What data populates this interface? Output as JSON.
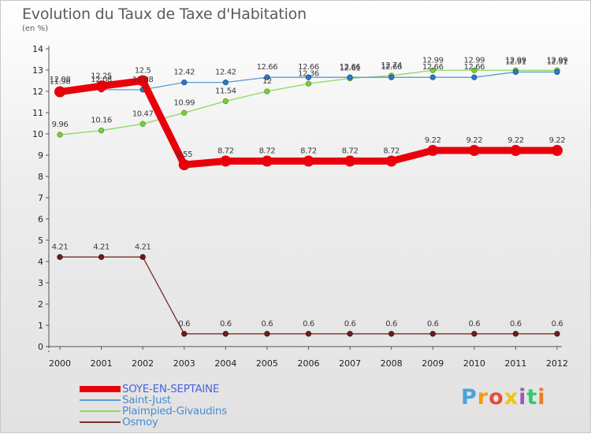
{
  "header": {
    "title": "Evolution du Taux de Taxe d'Habitation",
    "subtitle": "(en %)"
  },
  "logo": {
    "letters": [
      "P",
      "r",
      "o",
      "x",
      "i",
      "t",
      "i"
    ],
    "colors": [
      "#4aa3df",
      "#f39c12",
      "#e74c3c",
      "#f1c40f",
      "#9b59b6",
      "#2ecc71",
      "#e67e22"
    ]
  },
  "chart_data": {
    "type": "line",
    "title": "Evolution du Taux de Taxe d'Habitation",
    "subtitle": "(en %)",
    "x": [
      "2000",
      "2001",
      "2002",
      "2003",
      "2004",
      "2005",
      "2006",
      "2007",
      "2008",
      "2009",
      "2010",
      "2011",
      "2012"
    ],
    "ylim": [
      0,
      14
    ],
    "yticks": [
      "0",
      "1",
      "2",
      "3",
      "4",
      "5",
      "6",
      "7",
      "8",
      "9",
      "10",
      "11",
      "12",
      "13",
      "14"
    ],
    "grid": false,
    "legend_position": "bottom-left",
    "series": [
      {
        "name": "SOYE-EN-SEPTAINE",
        "color": "#e8000b",
        "values": [
          11.98,
          12.25,
          12.5,
          8.55,
          8.72,
          8.72,
          8.72,
          8.72,
          8.72,
          9.22,
          9.22,
          9.22,
          9.22
        ],
        "labels": [
          "11.98",
          "12.25",
          "12.5",
          "8.55",
          "8.72",
          "8.72",
          "8.72",
          "8.72",
          "8.72",
          "9.22",
          "9.22",
          "9.22",
          "9.22"
        ]
      },
      {
        "name": "Saint-Just",
        "color": "#5b9bd5",
        "values": [
          12.08,
          12.08,
          12.08,
          12.42,
          12.42,
          12.66,
          12.66,
          12.66,
          12.66,
          12.66,
          12.66,
          12.91,
          12.91
        ],
        "labels": [
          "12.08",
          "12.08",
          "12.08",
          "12.42",
          "12.42",
          "12.66",
          "12.66",
          "12.66",
          "12.66",
          "12.66",
          "12.66",
          "12.91",
          "12.91"
        ]
      },
      {
        "name": "Plaimpied-Givaudins",
        "color": "#8dd95f",
        "values": [
          9.96,
          10.16,
          10.47,
          10.99,
          11.54,
          12.0,
          12.36,
          12.61,
          12.74,
          12.99,
          12.99,
          12.99,
          12.99
        ],
        "labels": [
          "9.96",
          "10.16",
          "10.47",
          "10.99",
          "11.54",
          "12",
          "12.36",
          "12.61",
          "12.74",
          "12.99",
          "12.99",
          "12.99",
          "12.99"
        ]
      },
      {
        "name": "Osmoy",
        "color": "#7a2e2e",
        "values": [
          4.21,
          4.21,
          4.21,
          0.6,
          0.6,
          0.6,
          0.6,
          0.6,
          0.6,
          0.6,
          0.6,
          0.6,
          0.6
        ],
        "labels": [
          "4.21",
          "4.21",
          "4.21",
          "0.6",
          "0.6",
          "0.6",
          "0.6",
          "0.6",
          "0.6",
          "0.6",
          "0.6",
          "0.6",
          "0.6"
        ]
      }
    ]
  }
}
